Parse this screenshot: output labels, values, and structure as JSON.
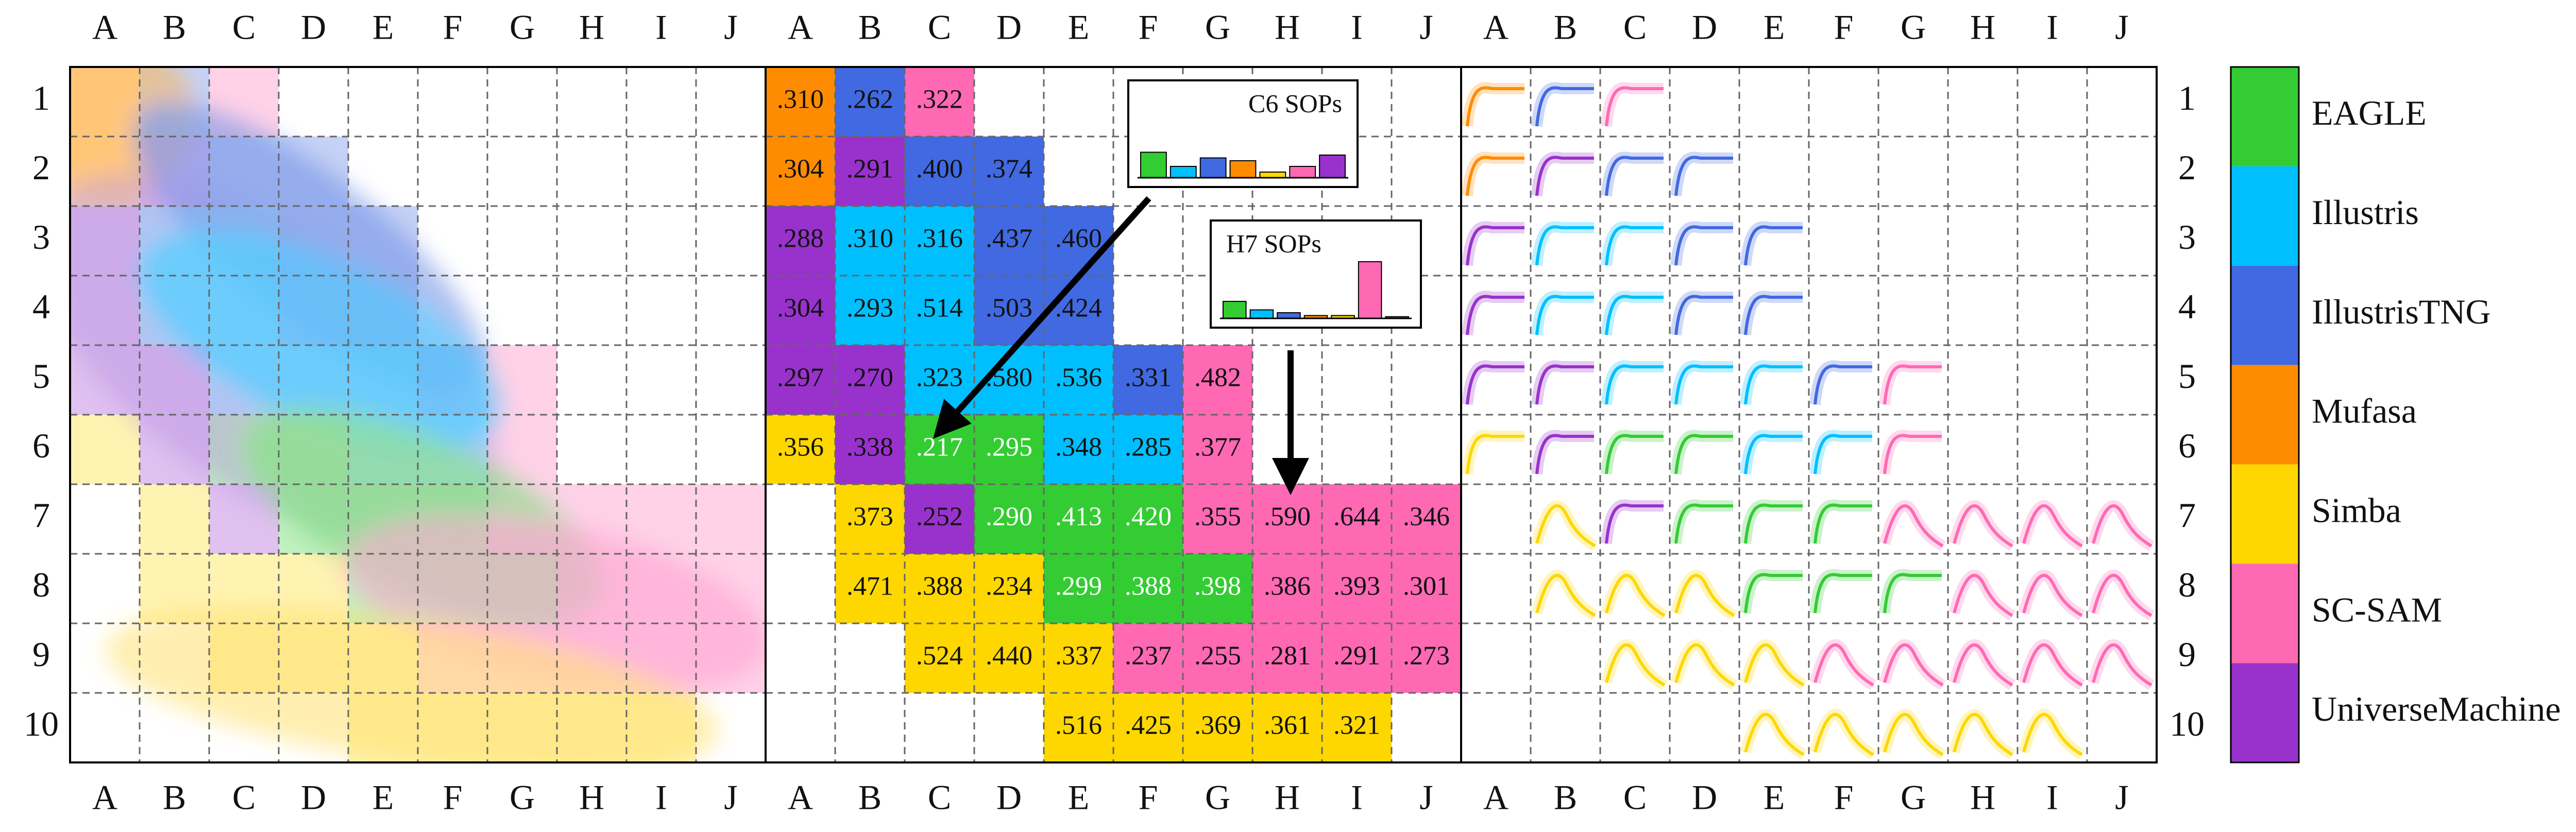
{
  "chart_data": {
    "type": "heatmap",
    "columns": [
      "A",
      "B",
      "C",
      "D",
      "E",
      "F",
      "G",
      "H",
      "I",
      "J"
    ],
    "rows": [
      1,
      2,
      3,
      4,
      5,
      6,
      7,
      8,
      9,
      10
    ],
    "series": [
      {
        "name": "EAGLE",
        "color": "#33cc33"
      },
      {
        "name": "Illustris",
        "color": "#00bfff"
      },
      {
        "name": "IllustrisTNG",
        "color": "#4169e1"
      },
      {
        "name": "Mufasa",
        "color": "#ff8c00"
      },
      {
        "name": "Simba",
        "color": "#ffd700"
      },
      {
        "name": "SC-SAM",
        "color": "#ff69b4"
      },
      {
        "name": "UniverseMachine",
        "color": "#9932cc"
      }
    ],
    "labels": [
      [
        ".310",
        ".262",
        ".322",
        null,
        null,
        null,
        null,
        null,
        null,
        null
      ],
      [
        ".304",
        ".291",
        ".400",
        ".374",
        null,
        null,
        null,
        null,
        null,
        null
      ],
      [
        ".288",
        ".310",
        ".316",
        ".437",
        ".460",
        null,
        null,
        null,
        null,
        null
      ],
      [
        ".304",
        ".293",
        ".514",
        ".503",
        ".424",
        null,
        null,
        null,
        null,
        null
      ],
      [
        ".297",
        ".270",
        ".323",
        ".580",
        ".536",
        ".331",
        ".482",
        null,
        null,
        null
      ],
      [
        ".356",
        ".338",
        ".217",
        ".295",
        ".348",
        ".285",
        ".377",
        null,
        null,
        null
      ],
      [
        null,
        ".373",
        ".252",
        ".290",
        ".413",
        ".420",
        ".355",
        ".590",
        ".644",
        ".346"
      ],
      [
        null,
        ".471",
        ".388",
        ".234",
        ".299",
        ".388",
        ".398",
        ".386",
        ".393",
        ".301"
      ],
      [
        null,
        null,
        ".524",
        ".440",
        ".337",
        ".237",
        ".255",
        ".281",
        ".291",
        ".273"
      ],
      [
        null,
        null,
        null,
        null,
        ".516",
        ".425",
        ".369",
        ".361",
        ".321",
        null
      ]
    ],
    "winners": [
      [
        3,
        2,
        5,
        null,
        null,
        null,
        null,
        null,
        null,
        null
      ],
      [
        3,
        6,
        2,
        2,
        null,
        null,
        null,
        null,
        null,
        null
      ],
      [
        6,
        1,
        1,
        2,
        2,
        null,
        null,
        null,
        null,
        null
      ],
      [
        6,
        1,
        1,
        2,
        2,
        null,
        null,
        null,
        null,
        null
      ],
      [
        6,
        6,
        1,
        1,
        1,
        2,
        5,
        null,
        null,
        null
      ],
      [
        4,
        6,
        0,
        0,
        1,
        1,
        5,
        null,
        null,
        null
      ],
      [
        null,
        4,
        6,
        0,
        0,
        0,
        5,
        5,
        5,
        5
      ],
      [
        null,
        4,
        4,
        4,
        0,
        0,
        0,
        5,
        5,
        5
      ],
      [
        null,
        null,
        4,
        4,
        4,
        5,
        5,
        5,
        5,
        5
      ],
      [
        null,
        null,
        null,
        null,
        4,
        4,
        4,
        4,
        4,
        null
      ]
    ],
    "insets": [
      {
        "title": "C6 SOPs",
        "values": [
          0.45,
          0.2,
          0.35,
          0.3,
          0.1,
          0.2,
          0.4
        ]
      },
      {
        "title": "H7 SOPs",
        "values": [
          0.3,
          0.15,
          0.1,
          0.05,
          0.05,
          1.0,
          0.03
        ]
      }
    ]
  }
}
